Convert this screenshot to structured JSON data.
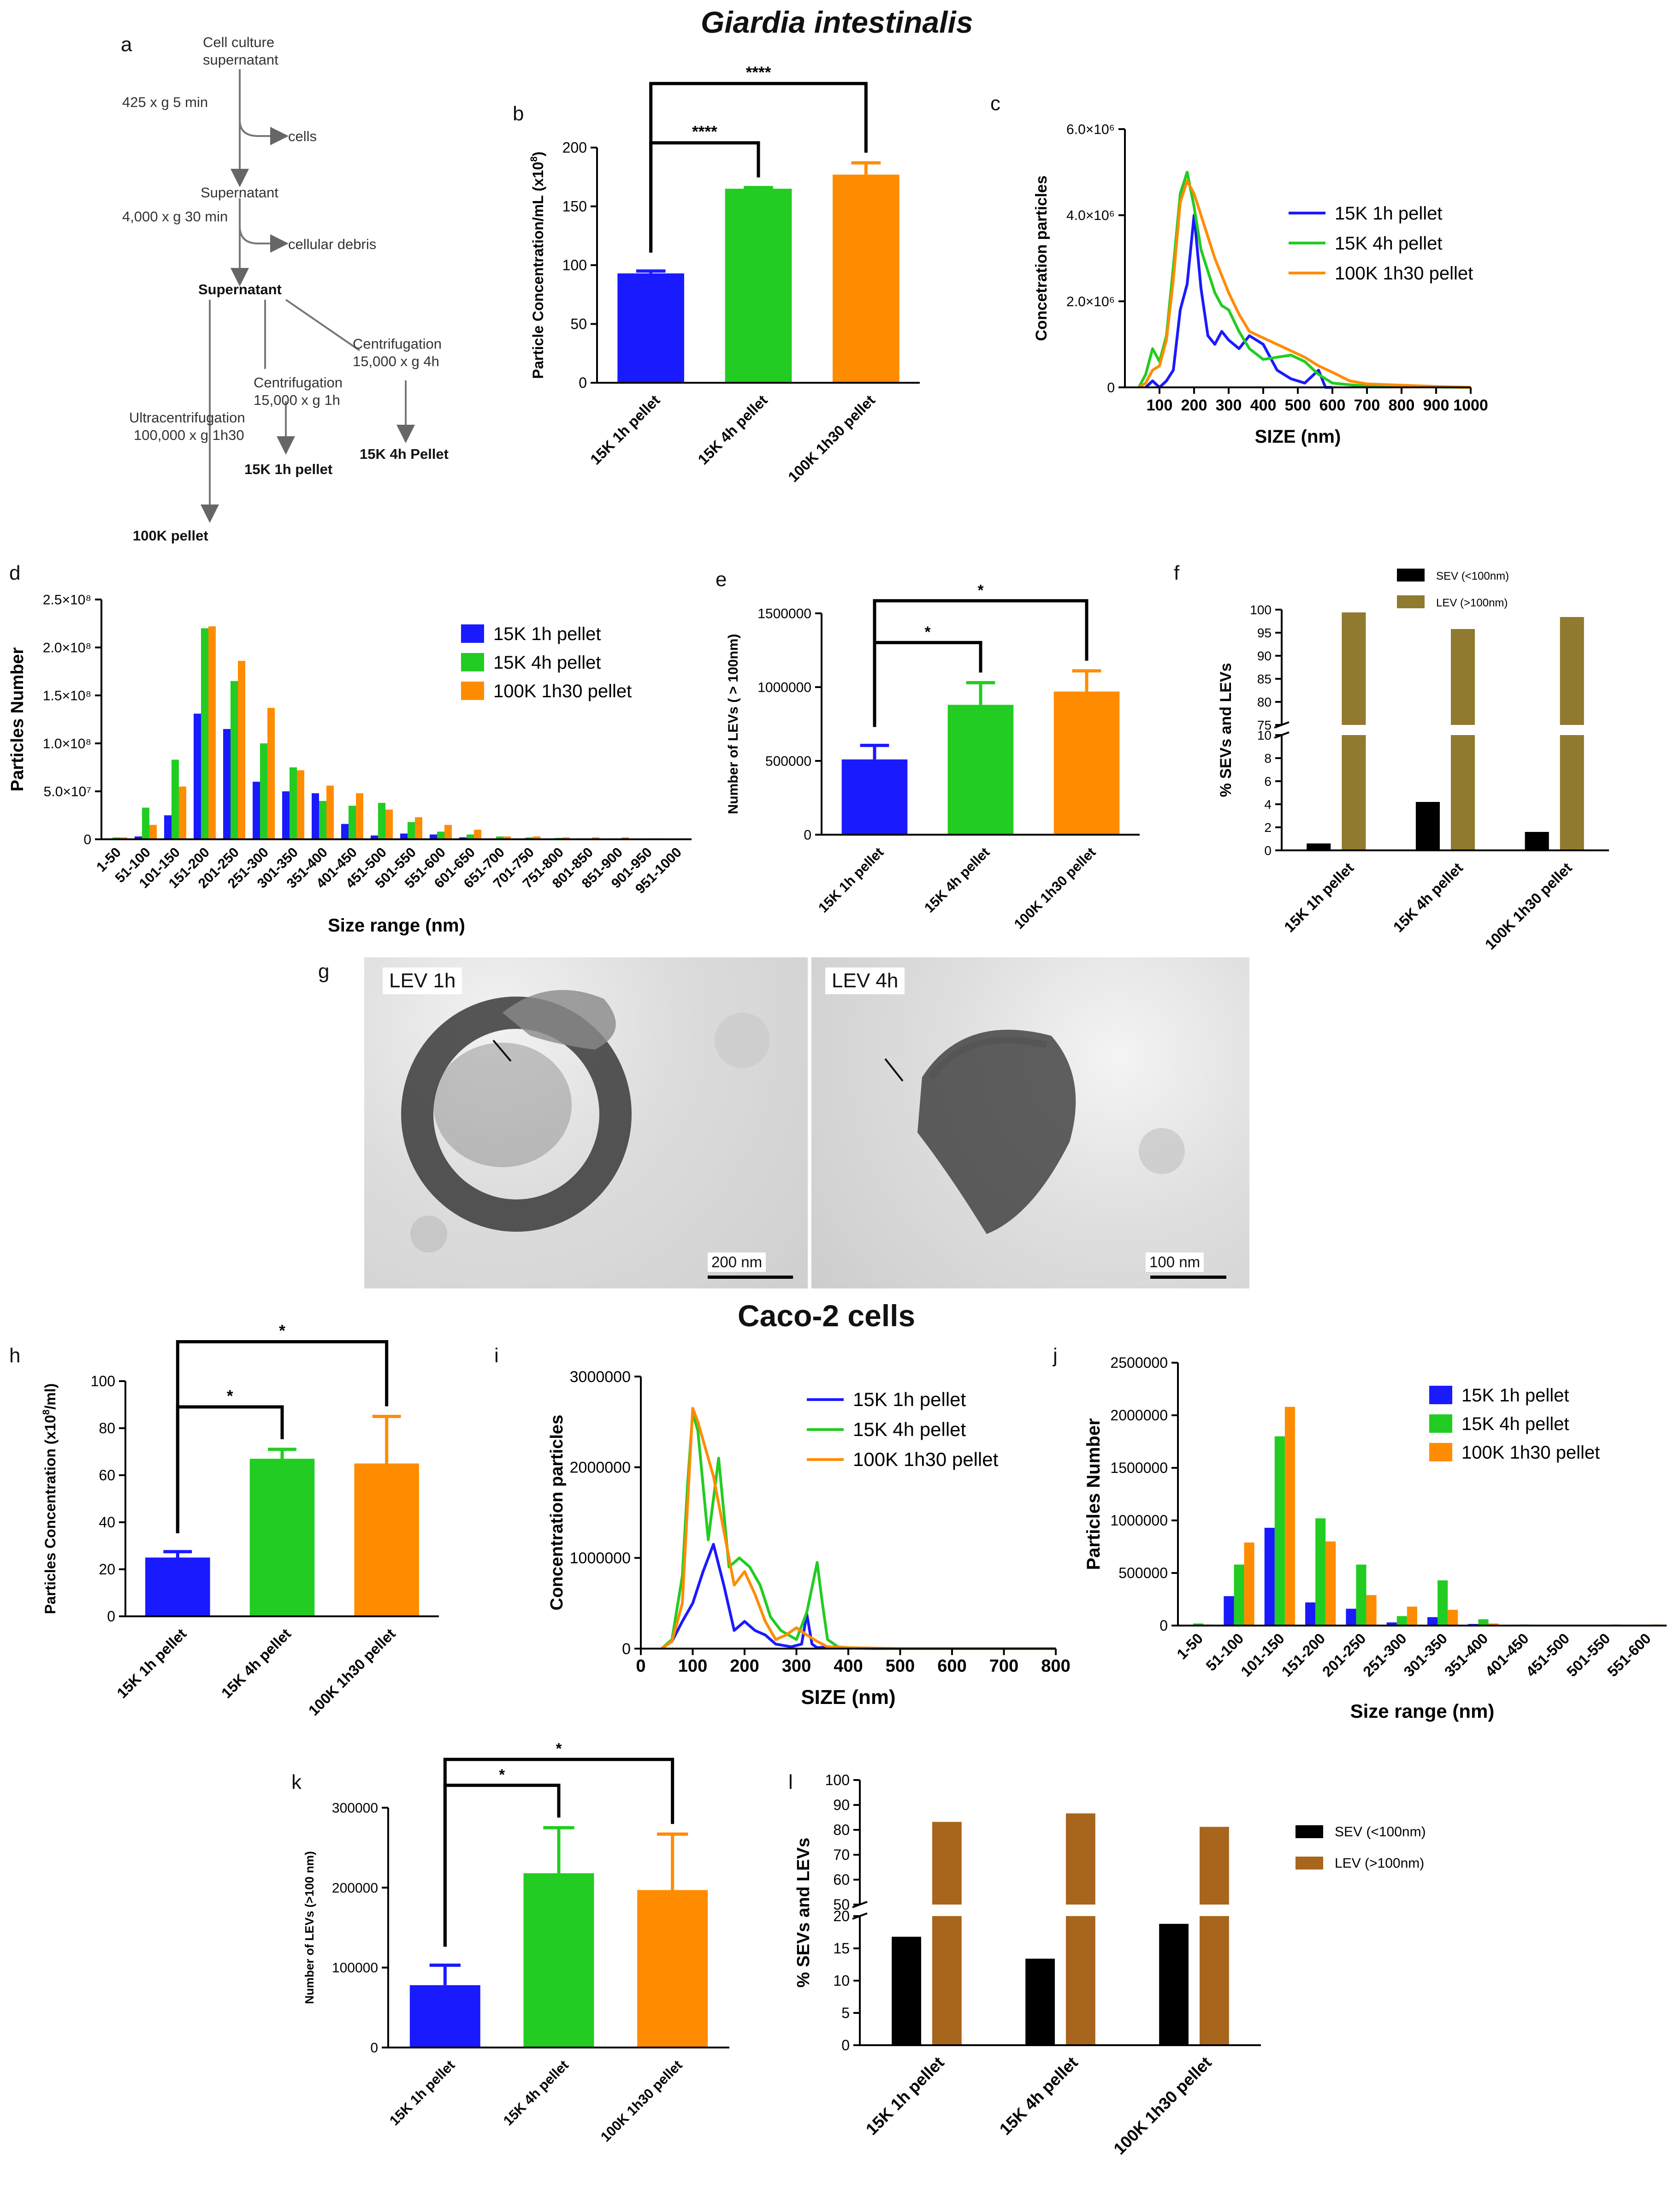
{
  "titles": {
    "top": "Giardia intestinalis",
    "middle": "Caco-2 cells"
  },
  "panel_labels": {
    "a": "a",
    "b": "b",
    "c": "c",
    "d": "d",
    "e": "e",
    "f": "f",
    "g": "g",
    "h": "h",
    "i": "i",
    "j": "j",
    "k": "k",
    "l": "l"
  },
  "flow": {
    "start": "Cell culture",
    "start2": "supernatant",
    "step1": "425 x g 5 min",
    "out1": "cells",
    "sup1": "Supernatant",
    "step2": "4,000 x g 30 min",
    "out2": "cellular debris",
    "sup2": "Supernatant",
    "ultra1": "Ultracentrifugation",
    "ultra2": "100,000 x g 1h30",
    "cent1a": "Centrifugation",
    "cent1b": "15,000 x g 1h",
    "cent2a": "Centrifugation",
    "cent2b": "15,000 x g 4h",
    "res100": "100K pellet",
    "res1h": "15K 1h pellet",
    "res4h": "15K 4h Pellet"
  },
  "tem": {
    "left_tag": "LEV 1h",
    "left_scale": "200 nm",
    "right_tag": "LEV 4h",
    "right_scale": "100 nm"
  },
  "colors": {
    "blue": "#1a1aff",
    "green": "#22cc22",
    "orange": "#ff8c00",
    "black": "#000000",
    "olive": "#8f7a2f",
    "brown": "#a8651c"
  },
  "chart_data": [
    {
      "id": "b",
      "type": "bar",
      "categories": [
        "15K 1h pellet",
        "15K 4h pellet",
        "100K 1h30 pellet"
      ],
      "values": [
        93,
        165,
        177
      ],
      "errors": [
        2,
        1,
        10
      ],
      "ylabel": "Particle Concentration/mL (x10",
      "ylabel_sup": "8",
      "ylabel_end": ")",
      "ylim": [
        0,
        200
      ],
      "yticks": [
        "0",
        "50",
        "100",
        "150",
        "200"
      ],
      "significance": [
        {
          "from": 0,
          "to": 1,
          "label": "****"
        },
        {
          "from": 0,
          "to": 2,
          "label": "****"
        }
      ]
    },
    {
      "id": "c",
      "type": "line",
      "xlabel": "SIZE (nm)",
      "ylabel": "Concetration particles",
      "xlim": [
        0,
        1000
      ],
      "ylim": [
        0,
        6000000
      ],
      "xticks": [
        "100",
        "200",
        "300",
        "400",
        "500",
        "600",
        "700",
        "800",
        "900",
        "1000"
      ],
      "yticks": [
        "0",
        "2.0×10⁶",
        "4.0×10⁶",
        "6.0×10⁶"
      ],
      "series": [
        {
          "name": "15K 1h pellet",
          "x": [
            60,
            80,
            100,
            120,
            140,
            160,
            180,
            200,
            220,
            240,
            260,
            280,
            300,
            330,
            360,
            400,
            440,
            480,
            520,
            560,
            580,
            600
          ],
          "y": [
            0,
            150000,
            0,
            150000,
            400000,
            1800000,
            2400000,
            4000000,
            2300000,
            1200000,
            1000000,
            1300000,
            1100000,
            900000,
            1200000,
            1000000,
            400000,
            200000,
            100000,
            400000,
            0,
            0
          ]
        },
        {
          "name": "15K 4h pellet",
          "x": [
            40,
            60,
            80,
            100,
            120,
            140,
            160,
            180,
            200,
            220,
            240,
            260,
            280,
            300,
            330,
            360,
            400,
            440,
            480,
            520,
            560,
            600,
            650,
            700,
            800,
            1000
          ],
          "y": [
            0,
            300000,
            900000,
            600000,
            1200000,
            2800000,
            4500000,
            5000000,
            4200000,
            3200000,
            2700000,
            2200000,
            1900000,
            1800000,
            1300000,
            900000,
            650000,
            700000,
            750000,
            600000,
            300000,
            100000,
            60000,
            30000,
            20000,
            0
          ]
        },
        {
          "name": "100K 1h30 pellet",
          "x": [
            40,
            60,
            80,
            100,
            120,
            140,
            160,
            180,
            200,
            220,
            240,
            260,
            280,
            300,
            330,
            360,
            400,
            440,
            480,
            520,
            560,
            600,
            650,
            700,
            800,
            900,
            1000
          ],
          "y": [
            0,
            100000,
            400000,
            500000,
            1100000,
            2500000,
            4300000,
            4800000,
            4500000,
            4000000,
            3500000,
            3000000,
            2600000,
            2200000,
            1700000,
            1300000,
            1150000,
            1000000,
            850000,
            700000,
            500000,
            350000,
            150000,
            80000,
            50000,
            20000,
            0
          ]
        }
      ]
    },
    {
      "id": "d",
      "type": "bar",
      "xlabel": "Size range (nm)",
      "ylabel": "Particles Number",
      "ylim": [
        0,
        250000000
      ],
      "yticks": [
        "0",
        "5.0×10⁷",
        "1.0×10⁸",
        "1.5×10⁸",
        "2.0×10⁸",
        "2.5×10⁸"
      ],
      "categories": [
        "1-50",
        "51-100",
        "101-150",
        "151-200",
        "201-250",
        "251-300",
        "301-350",
        "351-400",
        "401-450",
        "451-500",
        "501-550",
        "551-600",
        "601-650",
        "651-700",
        "701-750",
        "751-800",
        "801-850",
        "851-900",
        "901-950",
        "951-1000"
      ],
      "series": [
        {
          "name": "15K 1h pellet",
          "values": [
            1000000,
            3000000,
            25000000,
            131000000,
            115000000,
            60000000,
            50000000,
            48000000,
            16000000,
            4000000,
            6000000,
            5000000,
            2000000,
            1000000,
            1000000,
            1000000,
            1000000,
            500000,
            500000,
            500000
          ]
        },
        {
          "name": "15K 4h pellet",
          "values": [
            2000000,
            33000000,
            83000000,
            220000000,
            165000000,
            100000000,
            75000000,
            40000000,
            35000000,
            38000000,
            18000000,
            8000000,
            5000000,
            3000000,
            2000000,
            1500000,
            1000000,
            1000000,
            500000,
            500000
          ]
        },
        {
          "name": "100K 1h30 pellet",
          "values": [
            2000000,
            15000000,
            55000000,
            222000000,
            186000000,
            137000000,
            72000000,
            56000000,
            48000000,
            31000000,
            23000000,
            15000000,
            10000000,
            3000000,
            3000000,
            2000000,
            2000000,
            2000000,
            1000000,
            1000000
          ]
        }
      ]
    },
    {
      "id": "e",
      "type": "bar",
      "categories": [
        "15K 1h pellet",
        "15K 4h pellet",
        "100K 1h30 pellet"
      ],
      "values": [
        510000,
        880000,
        970000
      ],
      "errors": [
        95000,
        150000,
        140000
      ],
      "ylabel": "Number of LEVs ( > 100nm)",
      "ylim": [
        0,
        1500000
      ],
      "yticks": [
        "0",
        "500000",
        "1000000",
        "1500000"
      ],
      "significance": [
        {
          "from": 0,
          "to": 1,
          "label": "*"
        },
        {
          "from": 0,
          "to": 2,
          "label": "*"
        }
      ]
    },
    {
      "id": "f",
      "type": "bar",
      "categories": [
        "15K 1h pellet",
        "15K 4h pellet",
        "100K 1h30 pellet"
      ],
      "ylabel": "% SEVs and LEVs",
      "yticks_low": [
        "0",
        "2",
        "4",
        "6",
        "8",
        "10"
      ],
      "yticks_high": [
        "75",
        "80",
        "85",
        "90",
        "95",
        "100"
      ],
      "series": [
        {
          "name": "SEV (<100nm)",
          "values": [
            0.6,
            4.2,
            1.6
          ]
        },
        {
          "name": "LEV (>100nm)",
          "values": [
            99.4,
            95.8,
            98.4
          ]
        }
      ]
    },
    {
      "id": "h",
      "type": "bar",
      "categories": [
        "15K 1h pellet",
        "15K 4h pellet",
        "100K 1h30 pellet"
      ],
      "values": [
        25,
        67,
        65
      ],
      "errors": [
        2.5,
        4,
        20
      ],
      "ylabel": "Particles Concentration (x10",
      "ylabel_sup": "8",
      "ylabel_end": "/ml)",
      "ylim": [
        0,
        100
      ],
      "yticks": [
        "0",
        "20",
        "40",
        "60",
        "80",
        "100"
      ],
      "significance": [
        {
          "from": 0,
          "to": 1,
          "label": "*"
        },
        {
          "from": 0,
          "to": 2,
          "label": "*"
        }
      ]
    },
    {
      "id": "i",
      "type": "line",
      "xlabel": "SIZE (nm)",
      "ylabel": "Concentration particles",
      "xlim": [
        0,
        800
      ],
      "ylim": [
        0,
        3000000
      ],
      "xticks": [
        "0",
        "100",
        "200",
        "300",
        "400",
        "500",
        "600",
        "700",
        "800"
      ],
      "yticks": [
        "0",
        "1000000",
        "2000000",
        "3000000"
      ],
      "series": [
        {
          "name": "15K 1h pellet",
          "x": [
            40,
            60,
            80,
            100,
            120,
            140,
            160,
            180,
            200,
            220,
            240,
            260,
            290,
            310,
            320,
            330,
            340,
            360,
            400,
            420,
            450,
            500,
            600,
            800
          ],
          "y": [
            0,
            80000,
            300000,
            500000,
            850000,
            1150000,
            700000,
            200000,
            300000,
            200000,
            150000,
            50000,
            20000,
            50000,
            380000,
            50000,
            10000,
            20000,
            10000,
            5000,
            2000,
            0,
            0,
            0
          ]
        },
        {
          "name": "15K 4h pellet",
          "x": [
            40,
            60,
            80,
            90,
            100,
            110,
            120,
            130,
            150,
            170,
            190,
            210,
            230,
            250,
            270,
            300,
            320,
            340,
            350,
            360,
            380,
            400,
            450,
            500
          ],
          "y": [
            0,
            100000,
            800000,
            1800000,
            2600000,
            2400000,
            1800000,
            1200000,
            2100000,
            900000,
            1000000,
            900000,
            700000,
            350000,
            200000,
            100000,
            400000,
            950000,
            500000,
            100000,
            20000,
            10000,
            0,
            0
          ]
        },
        {
          "name": "100K 1h30 pellet",
          "x": [
            40,
            60,
            80,
            100,
            110,
            120,
            140,
            160,
            180,
            200,
            220,
            240,
            260,
            280,
            300,
            320,
            340,
            360,
            400,
            500,
            800
          ],
          "y": [
            0,
            80000,
            500000,
            2650000,
            2500000,
            2300000,
            1900000,
            1300000,
            700000,
            850000,
            600000,
            300000,
            100000,
            150000,
            230000,
            150000,
            80000,
            20000,
            10000,
            0,
            0
          ]
        }
      ]
    },
    {
      "id": "j",
      "type": "bar",
      "xlabel": "Size range (nm)",
      "ylabel": "Particles Number",
      "ylim": [
        0,
        2500000
      ],
      "yticks": [
        "0",
        "500000",
        "1000000",
        "1500000",
        "2000000",
        "2500000"
      ],
      "categories": [
        "1-50",
        "51-100",
        "101-150",
        "151-200",
        "201-250",
        "251-300",
        "301-350",
        "351-400",
        "401-450",
        "451-500",
        "501-550",
        "551-600"
      ],
      "series": [
        {
          "name": "15K 1h pellet",
          "values": [
            5000,
            280000,
            930000,
            220000,
            160000,
            30000,
            80000,
            15000,
            5000,
            5000,
            5000,
            5000
          ]
        },
        {
          "name": "15K 4h pellet",
          "values": [
            20000,
            580000,
            1800000,
            1020000,
            580000,
            90000,
            430000,
            60000,
            10000,
            5000,
            5000,
            5000
          ]
        },
        {
          "name": "100K 1h30 pellet",
          "values": [
            10000,
            790000,
            2080000,
            800000,
            290000,
            180000,
            150000,
            20000,
            5000,
            5000,
            10000,
            10000
          ]
        }
      ]
    },
    {
      "id": "k",
      "type": "bar",
      "categories": [
        "15K 1h pellet",
        "15K 4h pellet",
        "100K 1h30 pellet"
      ],
      "values": [
        78000,
        218000,
        197000
      ],
      "errors": [
        25000,
        57000,
        70000
      ],
      "ylabel": "Number of LEVs (>100 nm)",
      "ylim": [
        0,
        300000
      ],
      "yticks": [
        "0",
        "100000",
        "200000",
        "300000"
      ],
      "significance": [
        {
          "from": 0,
          "to": 1,
          "label": "*"
        },
        {
          "from": 0,
          "to": 2,
          "label": "*"
        }
      ]
    },
    {
      "id": "l",
      "type": "bar",
      "categories": [
        "15K 1h pellet",
        "15K 4h pellet",
        "100K 1h30 pellet"
      ],
      "ylabel": "% SEVs and LEVs",
      "yticks_low": [
        "0",
        "5",
        "10",
        "15",
        "20"
      ],
      "yticks_high": [
        "50",
        "60",
        "70",
        "80",
        "90",
        "100"
      ],
      "series": [
        {
          "name": "SEV (<100nm)",
          "values": [
            16.8,
            13.4,
            18.8
          ]
        },
        {
          "name": "LEV (>100nm)",
          "values": [
            83.2,
            86.6,
            81.2
          ]
        }
      ]
    }
  ]
}
